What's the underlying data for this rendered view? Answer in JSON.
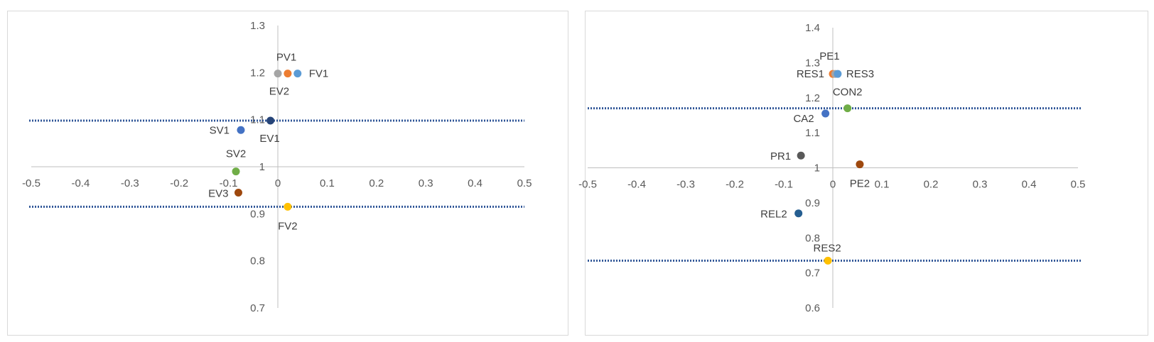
{
  "chart_data": [
    {
      "type": "scatter",
      "xlim": [
        -0.5,
        0.5
      ],
      "ylim": [
        0.7,
        1.3
      ],
      "x_ticks": [
        "-0.5",
        "-0.4",
        "-0.3",
        "-0.2",
        "-0.1",
        "0",
        "0.1",
        "0.2",
        "0.3",
        "0.4",
        "0.5"
      ],
      "y_ticks": [
        "0.7",
        "0.8",
        "0.9",
        "1",
        "1.1",
        "1.2",
        "1.3"
      ],
      "reference_lines": [
        1.098,
        0.915
      ],
      "reference_line_color": "#2f5597",
      "grid": false,
      "legend": "none",
      "points": [
        {
          "label": "PV1",
          "x": 0.0,
          "y": 1.198,
          "color": "#a5a5a5"
        },
        {
          "label": "EV2",
          "x": 0.02,
          "y": 1.198,
          "color": "#ed7d31"
        },
        {
          "label": "FV1",
          "x": 0.04,
          "y": 1.198,
          "color": "#5b9bd5"
        },
        {
          "label": "EV1",
          "x": -0.015,
          "y": 1.098,
          "color": "#264478"
        },
        {
          "label": "SV1",
          "x": -0.075,
          "y": 1.078,
          "color": "#4472c4"
        },
        {
          "label": "SV2",
          "x": -0.085,
          "y": 0.99,
          "color": "#70ad47"
        },
        {
          "label": "EV3",
          "x": -0.08,
          "y": 0.945,
          "color": "#9e480e"
        },
        {
          "label": "FV2",
          "x": 0.02,
          "y": 0.915,
          "color": "#ffc000"
        }
      ]
    },
    {
      "type": "scatter",
      "xlim": [
        -0.5,
        0.5
      ],
      "ylim": [
        0.6,
        1.4
      ],
      "x_ticks": [
        "-0.5",
        "-0.4",
        "-0.3",
        "-0.2",
        "-0.1",
        "0",
        "0.1",
        "0.2",
        "0.3",
        "0.4",
        "0.5"
      ],
      "y_ticks": [
        "0.6",
        "0.7",
        "0.8",
        "0.9",
        "1",
        "1.1",
        "1.2",
        "1.3",
        "1.4"
      ],
      "reference_lines": [
        1.17,
        0.735
      ],
      "reference_line_color": "#2f5597",
      "grid": false,
      "legend": "none",
      "points": [
        {
          "label": "RES1",
          "x": 0.0,
          "y": 1.268,
          "color": "#ed7d31"
        },
        {
          "label": "PE1",
          "x": 0.005,
          "y": 1.268,
          "color": "#a5a5a5"
        },
        {
          "label": "RES3",
          "x": 0.01,
          "y": 1.268,
          "color": "#5b9bd5"
        },
        {
          "label": "CON2",
          "x": 0.03,
          "y": 1.17,
          "color": "#70ad47"
        },
        {
          "label": "CA2",
          "x": -0.015,
          "y": 1.155,
          "color": "#4472c4"
        },
        {
          "label": "PR1",
          "x": -0.065,
          "y": 1.035,
          "color": "#595959"
        },
        {
          "label": "PE2",
          "x": 0.055,
          "y": 1.01,
          "color": "#9e480e"
        },
        {
          "label": "REL2",
          "x": -0.07,
          "y": 0.87,
          "color": "#255e91"
        },
        {
          "label": "RES2",
          "x": -0.01,
          "y": 0.735,
          "color": "#ffc000"
        }
      ]
    }
  ]
}
